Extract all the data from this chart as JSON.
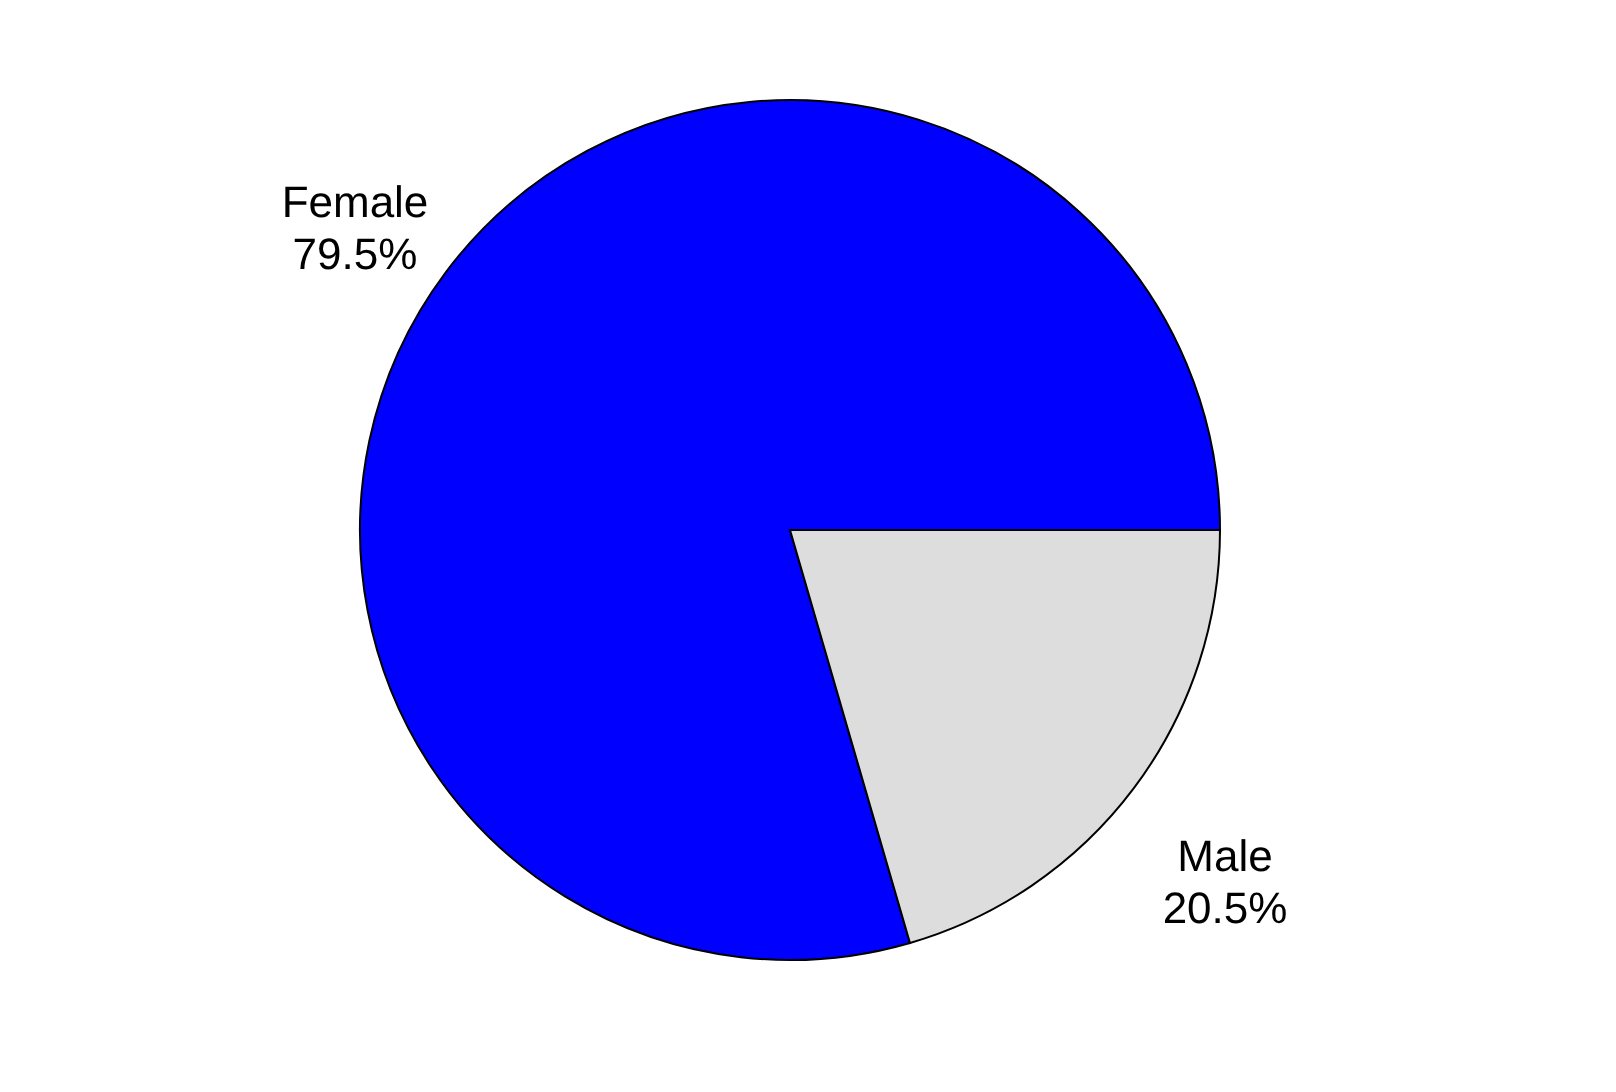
{
  "chart_data": {
    "type": "pie",
    "categories": [
      "Female",
      "Male"
    ],
    "values": [
      79.5,
      20.5
    ],
    "colors": [
      "#0000ff",
      "#dddddd"
    ],
    "value_labels": [
      "79.5%",
      "20.5%"
    ],
    "legend": false
  }
}
